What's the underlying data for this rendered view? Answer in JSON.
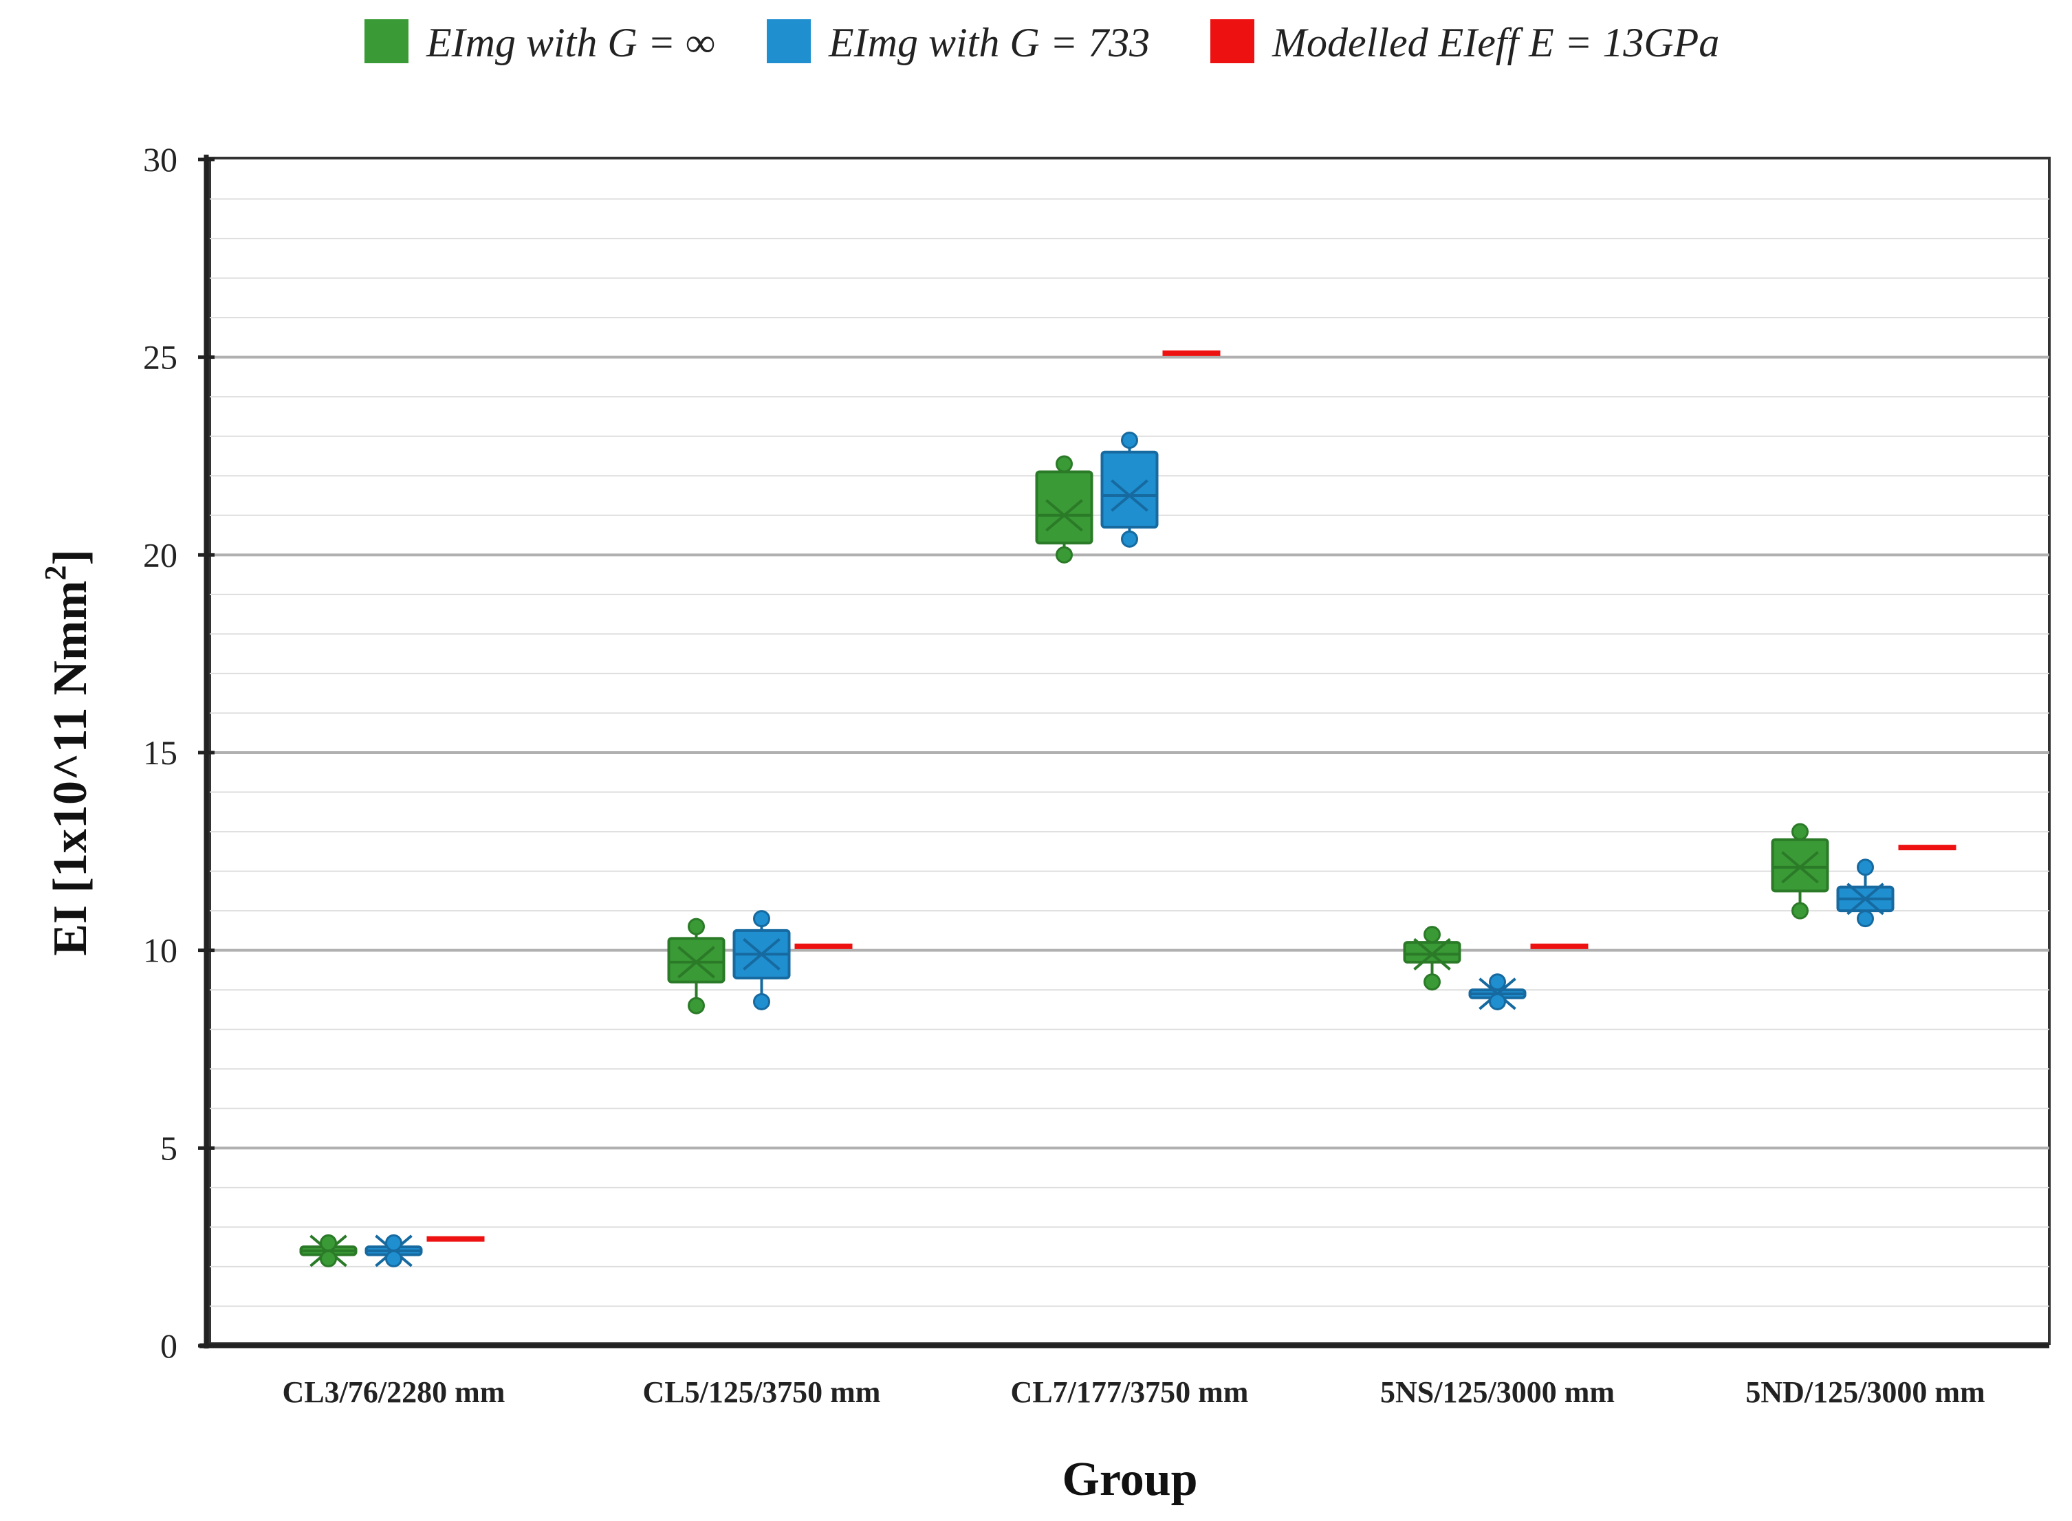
{
  "chart_data": {
    "type": "box",
    "title": "",
    "xlabel": "Group",
    "ylabel_main": "EI [1x10^11 Nmm",
    "ylabel_sup": "2",
    "ylabel_close": "]",
    "ylim": [
      0,
      30
    ],
    "yticks": [
      0,
      5,
      10,
      15,
      20,
      25,
      30
    ],
    "minor_step": 1,
    "categories": [
      "CL3/76/2280 mm",
      "CL5/125/3750 mm",
      "CL7/177/3750 mm",
      "5NS/125/3000 mm",
      "5ND/125/3000 mm"
    ],
    "legend": [
      {
        "label": "EImg with G = ∞",
        "color": "#3a9a35"
      },
      {
        "label": "EImg with G = 733",
        "color": "#1f8fd0"
      },
      {
        "label": "Modelled EIeff E = 13GPa",
        "color": "#ee1111"
      }
    ],
    "series": [
      {
        "name": "EImg with G = ∞",
        "color": "#3a9a35",
        "stroke": "#2b7a28",
        "boxes": [
          {
            "min": 2.2,
            "q1": 2.3,
            "median": 2.4,
            "q3": 2.5,
            "max": 2.6,
            "mean": 2.4
          },
          {
            "min": 8.6,
            "q1": 9.2,
            "median": 9.7,
            "q3": 10.3,
            "max": 10.6,
            "mean": 9.7
          },
          {
            "min": 20.0,
            "q1": 20.3,
            "median": 21.0,
            "q3": 22.1,
            "max": 22.3,
            "mean": 21.0
          },
          {
            "min": 9.2,
            "q1": 9.7,
            "median": 9.9,
            "q3": 10.2,
            "max": 10.4,
            "mean": 9.9
          },
          {
            "min": 11.0,
            "q1": 11.5,
            "median": 12.1,
            "q3": 12.8,
            "max": 13.0,
            "mean": 12.1
          }
        ]
      },
      {
        "name": "EImg with G = 733",
        "color": "#1f8fd0",
        "stroke": "#166aa0",
        "boxes": [
          {
            "min": 2.2,
            "q1": 2.3,
            "median": 2.4,
            "q3": 2.5,
            "max": 2.6,
            "mean": 2.4
          },
          {
            "min": 8.7,
            "q1": 9.3,
            "median": 9.9,
            "q3": 10.5,
            "max": 10.8,
            "mean": 9.9
          },
          {
            "min": 20.4,
            "q1": 20.7,
            "median": 21.5,
            "q3": 22.6,
            "max": 22.9,
            "mean": 21.5
          },
          {
            "min": 8.7,
            "q1": 8.8,
            "median": 8.9,
            "q3": 9.0,
            "max": 9.2,
            "mean": 8.9
          },
          {
            "min": 10.8,
            "q1": 11.0,
            "median": 11.3,
            "q3": 11.6,
            "max": 12.1,
            "mean": 11.3
          }
        ]
      },
      {
        "name": "Modelled EIeff E = 13GPa",
        "color": "#ee1111",
        "values": [
          2.7,
          10.1,
          25.1,
          10.1,
          12.6
        ]
      }
    ]
  }
}
